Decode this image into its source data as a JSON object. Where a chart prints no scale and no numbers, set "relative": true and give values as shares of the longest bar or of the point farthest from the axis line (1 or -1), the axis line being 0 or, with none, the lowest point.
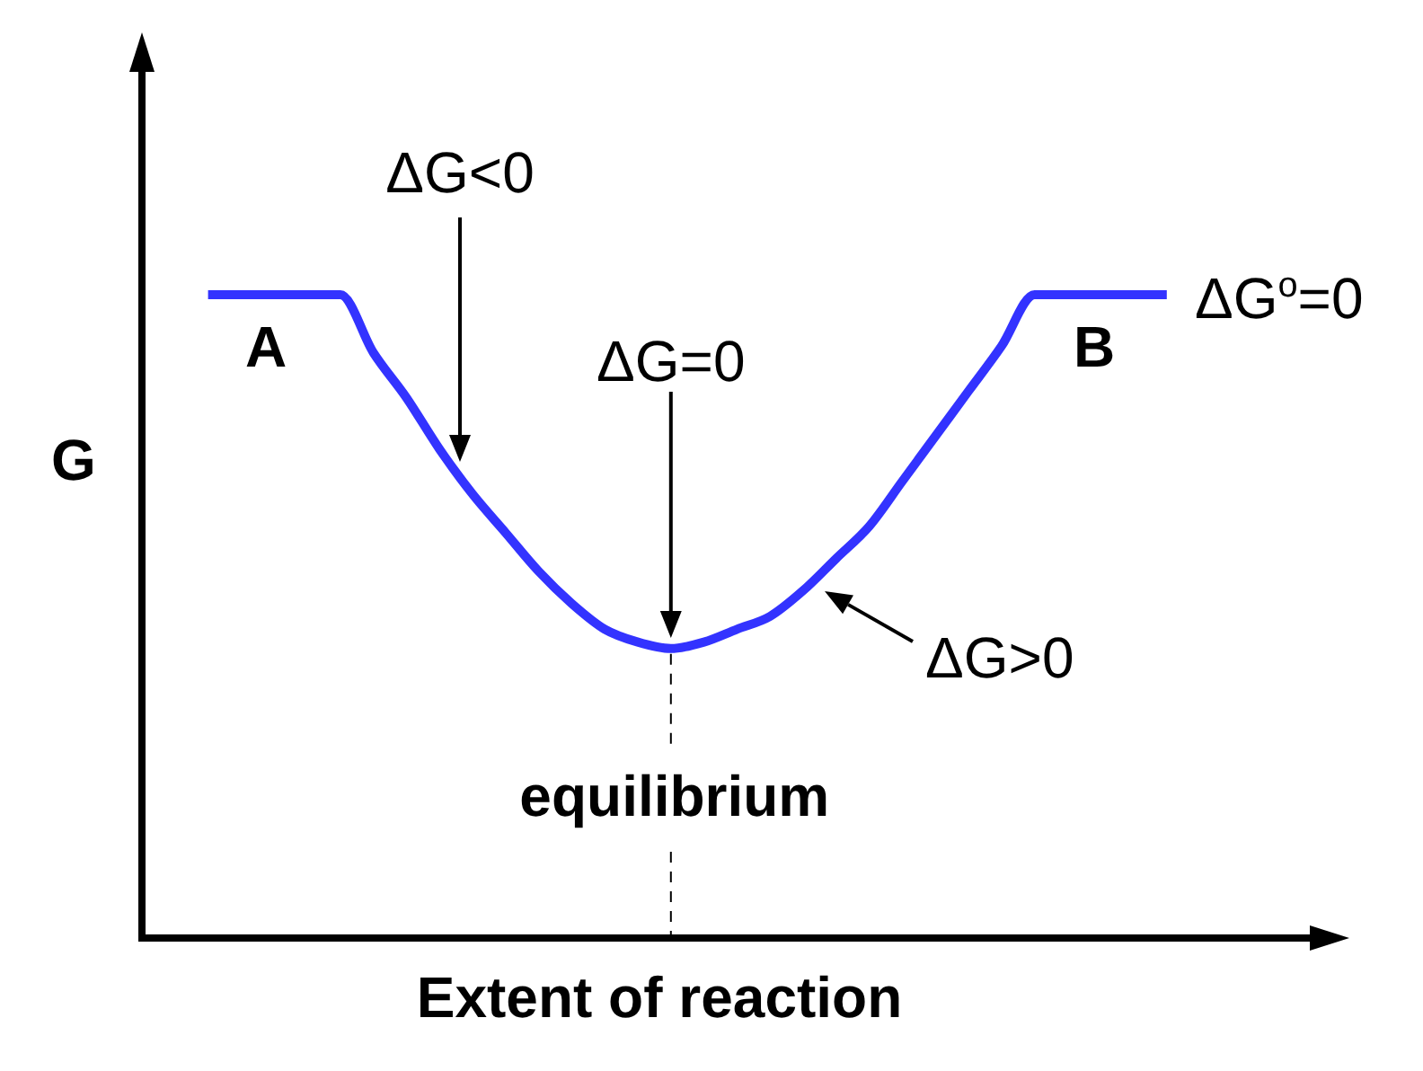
{
  "chart_data": {
    "type": "line",
    "relative": true,
    "xlabel": "Extent of reaction",
    "ylabel": "G",
    "categories": [
      null,
      null,
      null,
      null,
      null,
      null,
      null,
      null,
      null,
      null,
      null,
      null,
      null,
      null,
      null,
      null,
      null,
      null,
      null,
      null,
      null,
      null,
      null,
      null,
      null,
      null,
      null,
      null,
      null,
      null,
      null,
      null,
      null,
      null,
      null,
      null,
      null
    ],
    "values": [
      null,
      null,
      1,
      1,
      1,
      1,
      1,
      0.91,
      0.84,
      0.76,
      0.69,
      0.63,
      0.57,
      0.52,
      0.48,
      0.46,
      0.45,
      0.46,
      0.48,
      0.5,
      0.54,
      0.59,
      0.64,
      0.71,
      0.78,
      0.85,
      0.92,
      1,
      1,
      1,
      1,
      1,
      null,
      null,
      null,
      null,
      null
    ],
    "color": "#3333ff",
    "annotations": [
      "ΔG<0",
      "ΔG=0",
      "ΔG>0",
      "ΔG$^{o}$=0",
      "A",
      "B",
      "equilibrium"
    ]
  }
}
